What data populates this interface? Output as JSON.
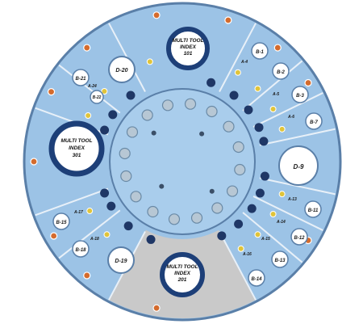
{
  "diagram": {
    "colors": {
      "background": "#ffffff",
      "ring_fill": "#9cc3e6",
      "ring_edge": "#5a7fa8",
      "sector_line": "#e8f0f8",
      "grey_sector": "#c9c9c9",
      "center_fill": "#a9cdec",
      "tool_circle": "#ffffff",
      "tool_ring_dark": "#1d3f78",
      "port_dark": "#1f3766",
      "port_yellow": "#e0c43a",
      "port_orange": "#d46b2d",
      "center_stud": "#b7c7d4"
    },
    "tool_stations": [
      {
        "line1": "MULTI TOOL",
        "line2": "INDEX",
        "line3": "101"
      },
      {
        "line1": "MULTI TOOL",
        "line2": "INDEX",
        "line3": "301"
      },
      {
        "line1": "MULTI TOOL",
        "line2": "INDEX",
        "line3": "201"
      }
    ],
    "large_stations": [
      {
        "label": "D-9"
      },
      {
        "label": "D-20"
      },
      {
        "label": "D-19"
      }
    ],
    "small_stations": [
      {
        "label": "B-1"
      },
      {
        "label": "B-2"
      },
      {
        "label": "B-3"
      },
      {
        "label": "B-7"
      },
      {
        "label": "B-11"
      },
      {
        "label": "B-12"
      },
      {
        "label": "B-13"
      },
      {
        "label": "B-14"
      },
      {
        "label": "B-15"
      },
      {
        "label": "B-18"
      },
      {
        "label": "B-21"
      },
      {
        "label": "B-22"
      }
    ],
    "port_labels": [
      {
        "label": "A-4"
      },
      {
        "label": "A-5"
      },
      {
        "label": "A-6"
      },
      {
        "label": "A-13"
      },
      {
        "label": "A-14"
      },
      {
        "label": "A-15"
      },
      {
        "label": "A-16"
      },
      {
        "label": "A-17"
      },
      {
        "label": "A-18"
      },
      {
        "label": "A-24"
      }
    ]
  }
}
